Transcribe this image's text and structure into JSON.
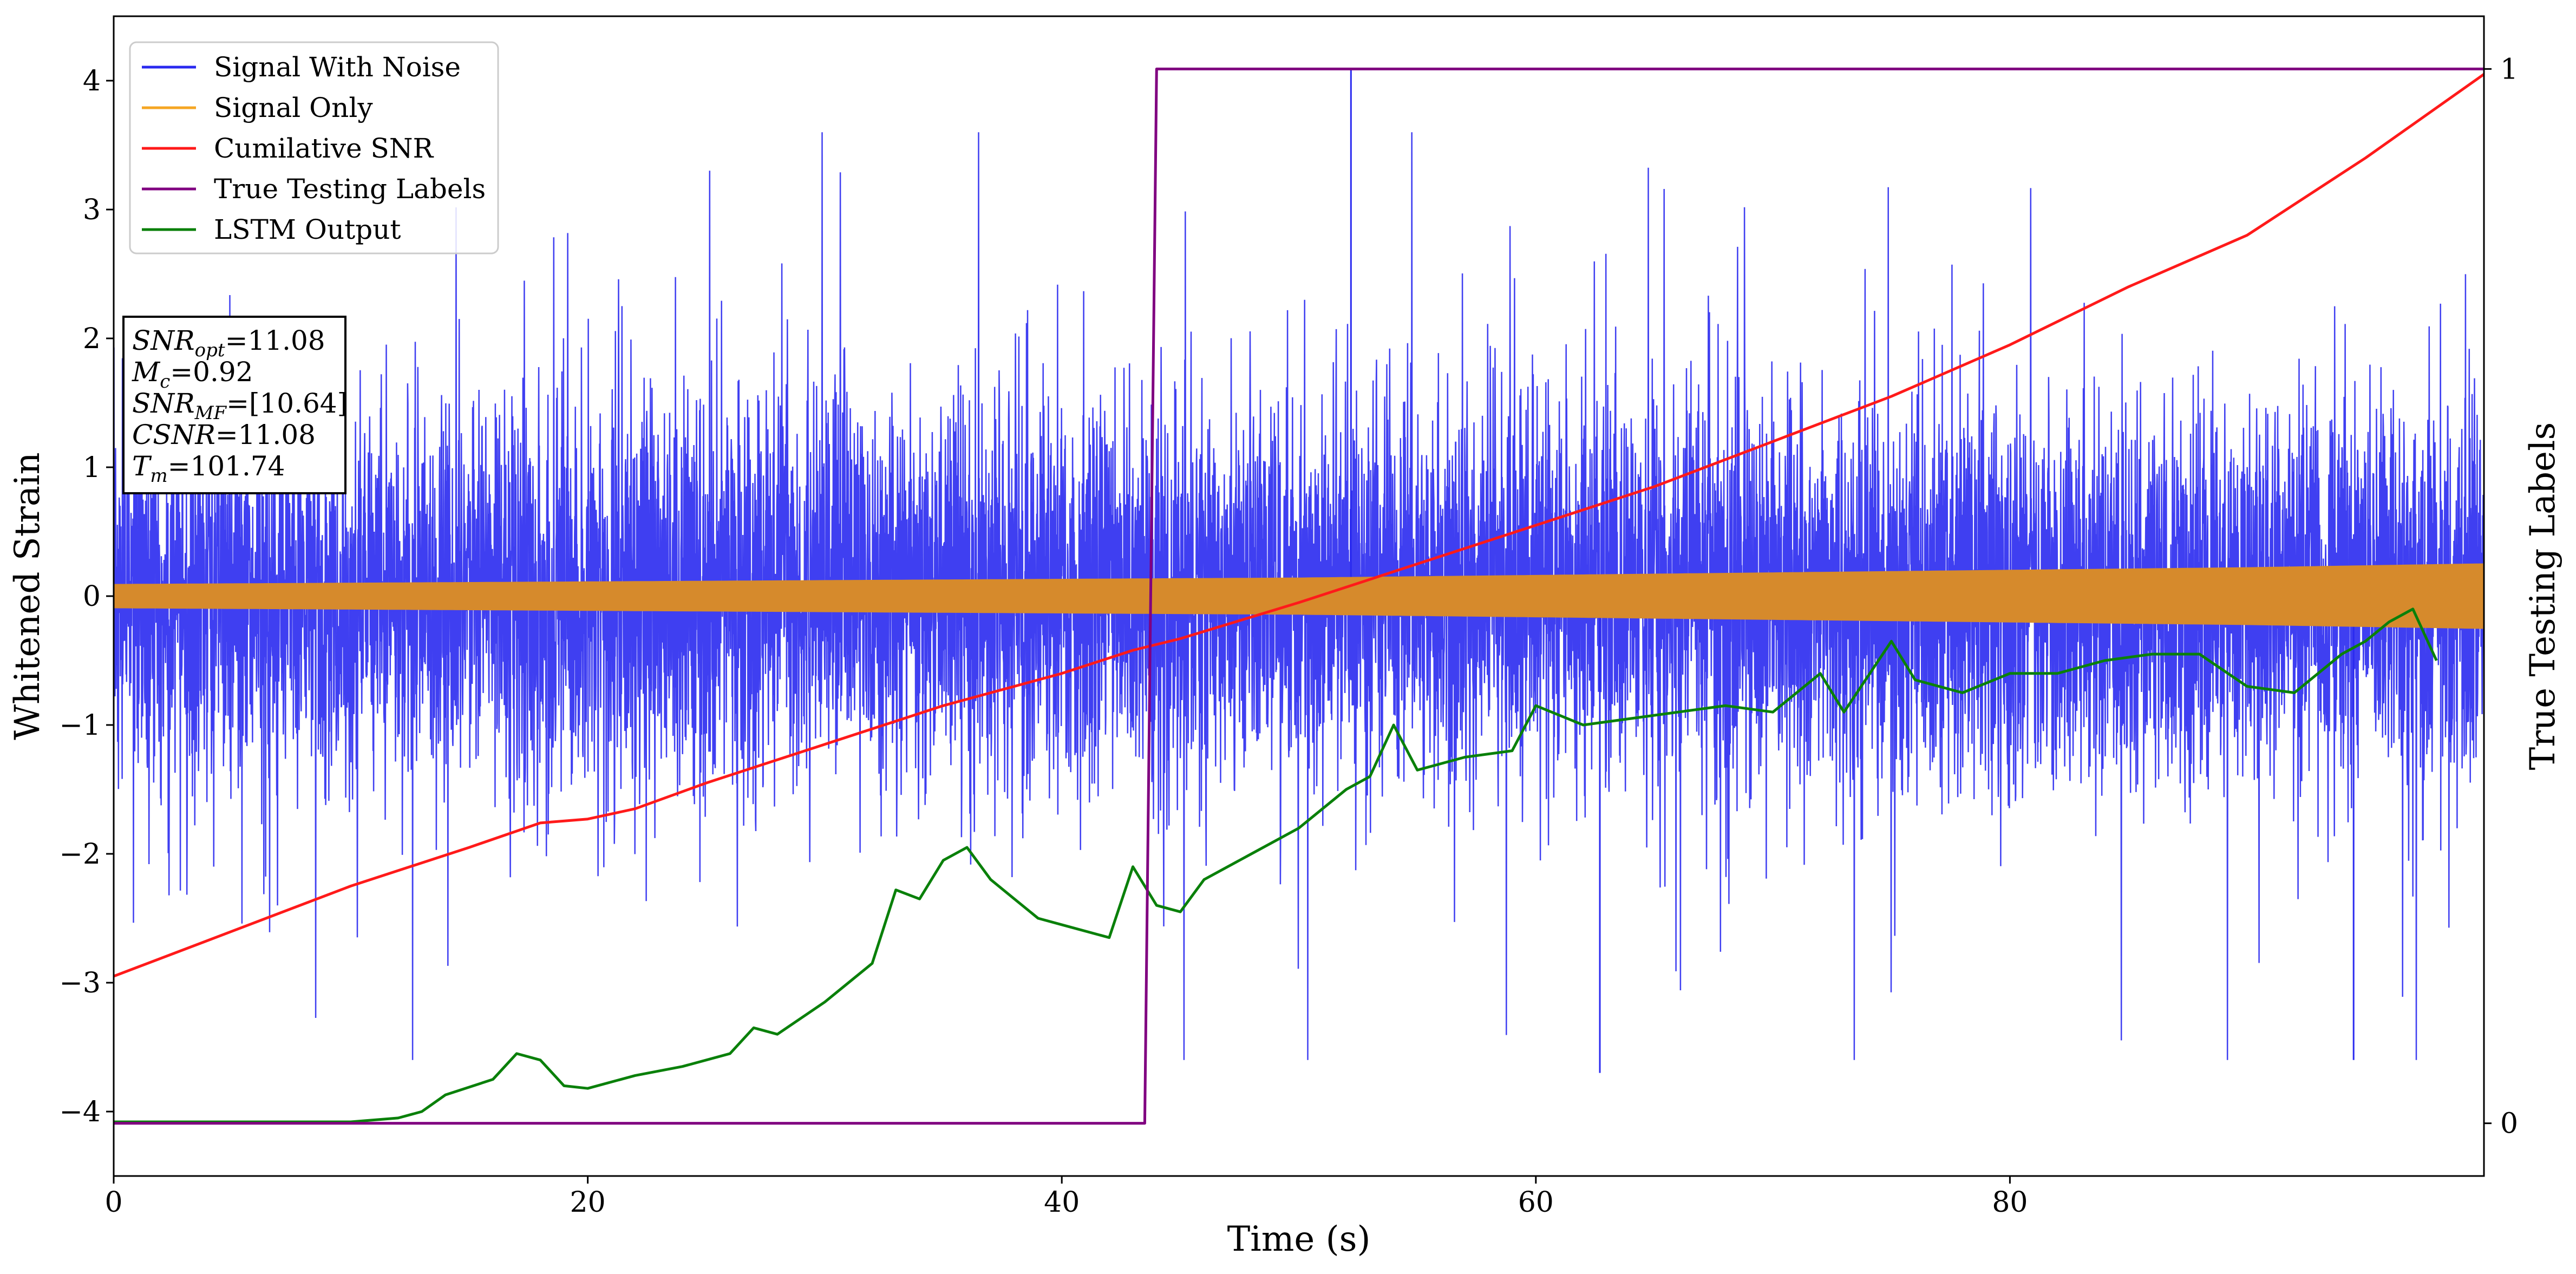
{
  "chart_data": {
    "type": "line",
    "xlabel": "Time (s)",
    "ylabel": "Whitened Strain",
    "y2label": "True Testing Labels",
    "xlim": [
      0,
      100
    ],
    "ylim": [
      -4.5,
      4.5
    ],
    "y2lim": [
      -0.05,
      1.05
    ],
    "x_ticks": [
      0,
      20,
      40,
      60,
      80
    ],
    "y_ticks": [
      -4,
      -3,
      -2,
      -1,
      0,
      1,
      2,
      3,
      4
    ],
    "y_tick_labels": [
      "−4",
      "−3",
      "−2",
      "−1",
      "0",
      "1",
      "2",
      "3",
      "4"
    ],
    "y2_ticks": [
      0,
      1
    ],
    "grid": false,
    "legend_position": "top-left",
    "legend": [
      {
        "name": "Signal With Noise",
        "color": "#2a2af0"
      },
      {
        "name": "Signal Only",
        "color": "#f5a623"
      },
      {
        "name": "Cumilative SNR",
        "color": "#ff1a1a"
      },
      {
        "name": "True Testing Labels",
        "color": "#800080"
      },
      {
        "name": "LSTM Output",
        "color": "#0a800a"
      }
    ],
    "annotation": [
      {
        "base": "SNR",
        "sub": "opt",
        "value": "=11.08"
      },
      {
        "base": "M",
        "sub": "c",
        "value": "=0.92"
      },
      {
        "base": "SNR",
        "sub": "MF",
        "value": "=[10.64]"
      },
      {
        "base": "CSNR",
        "sub": "",
        "value": "=11.08"
      },
      {
        "base": "T",
        "sub": "m",
        "value": "=101.74"
      }
    ],
    "series": [
      {
        "name": "Signal With Noise",
        "color": "#2a2af0",
        "style": "dense noise band",
        "typical_range": [
          -2.5,
          2.5
        ],
        "notable_peaks": [
          {
            "x": 52.2,
            "y": 4.1
          },
          {
            "x": 62.7,
            "y": -3.7
          },
          {
            "x": 94.5,
            "y": -3.6
          }
        ]
      },
      {
        "name": "Signal Only",
        "color": "#d68a2c",
        "envelope": {
          "x": [
            0,
            10,
            20,
            30,
            40,
            50,
            60,
            70,
            80,
            90,
            100
          ],
          "amp": [
            0.09,
            0.1,
            0.11,
            0.12,
            0.13,
            0.14,
            0.16,
            0.18,
            0.2,
            0.22,
            0.25
          ]
        }
      },
      {
        "name": "Cumilative SNR",
        "color": "#ff1a1a",
        "x": [
          0,
          5,
          10,
          15,
          18,
          20,
          22,
          25,
          30,
          35,
          40,
          43,
          45,
          50,
          55,
          60,
          65,
          70,
          75,
          80,
          85,
          90,
          95,
          100
        ],
        "y": [
          -2.95,
          -2.6,
          -2.25,
          -1.95,
          -1.76,
          -1.73,
          -1.65,
          -1.45,
          -1.15,
          -0.85,
          -0.6,
          -0.42,
          -0.33,
          -0.05,
          0.25,
          0.55,
          0.85,
          1.2,
          1.55,
          1.95,
          2.4,
          2.8,
          3.4,
          4.05
        ]
      },
      {
        "name": "True Testing Labels",
        "color": "#800080",
        "axis": "right",
        "x": [
          0,
          43.5,
          44.0,
          100
        ],
        "y": [
          0,
          0,
          1,
          1
        ]
      },
      {
        "name": "LSTM Output",
        "color": "#0a800a",
        "x": [
          0,
          10,
          12,
          13,
          14,
          16,
          17,
          18,
          19,
          20,
          22,
          24,
          26,
          27,
          28,
          30,
          31,
          32,
          33,
          34,
          35,
          36,
          37,
          38,
          39,
          40,
          42,
          43,
          44,
          45,
          46,
          48,
          50,
          52,
          53,
          54,
          55,
          57,
          59,
          60,
          62,
          64,
          66,
          68,
          70,
          72,
          73,
          75,
          76,
          78,
          80,
          82,
          84,
          86,
          88,
          90,
          92,
          94,
          95,
          96,
          97,
          98
        ],
        "y": [
          -4.08,
          -4.08,
          -4.05,
          -4.0,
          -3.87,
          -3.75,
          -3.55,
          -3.6,
          -3.8,
          -3.82,
          -3.72,
          -3.65,
          -3.55,
          -3.35,
          -3.4,
          -3.15,
          -3.0,
          -2.85,
          -2.28,
          -2.35,
          -2.05,
          -1.95,
          -2.2,
          -2.35,
          -2.5,
          -2.55,
          -2.65,
          -2.1,
          -2.4,
          -2.45,
          -2.2,
          -2.0,
          -1.8,
          -1.5,
          -1.4,
          -1.0,
          -1.35,
          -1.25,
          -1.2,
          -0.85,
          -1.0,
          -0.95,
          -0.9,
          -0.85,
          -0.9,
          -0.6,
          -0.9,
          -0.35,
          -0.65,
          -0.75,
          -0.6,
          -0.6,
          -0.5,
          -0.45,
          -0.45,
          -0.7,
          -0.75,
          -0.45,
          -0.35,
          -0.2,
          -0.1,
          -0.5
        ]
      }
    ]
  }
}
